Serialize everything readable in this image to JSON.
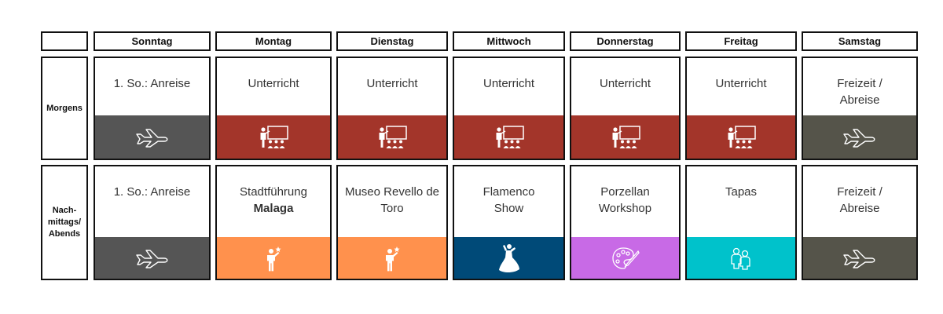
{
  "days": [
    "Sonntag",
    "Montag",
    "Dienstag",
    "Mittwoch",
    "Donnerstag",
    "Freitag",
    "Samstag"
  ],
  "rows": [
    {
      "label": "Morgens",
      "cells": [
        {
          "line1": "1. So.: Anreise",
          "line2": "",
          "icon": "airplane-icon",
          "color": "#555555"
        },
        {
          "line1": "Unterricht",
          "line2": "",
          "icon": "teacher-class-icon",
          "color": "#A3352A"
        },
        {
          "line1": "Unterricht",
          "line2": "",
          "icon": "teacher-class-icon",
          "color": "#A3352A"
        },
        {
          "line1": "Unterricht",
          "line2": "",
          "icon": "teacher-class-icon",
          "color": "#A3352A"
        },
        {
          "line1": "Unterricht",
          "line2": "",
          "icon": "teacher-class-icon",
          "color": "#A3352A"
        },
        {
          "line1": "Unterricht",
          "line2": "",
          "icon": "teacher-class-icon",
          "color": "#A3352A"
        },
        {
          "line1": "Freizeit /",
          "line2": "Abreise",
          "icon": "airplane-icon",
          "color": "#55544A"
        }
      ]
    },
    {
      "label_lines": [
        "Nach-",
        "mittags/",
        "Abends"
      ],
      "cells": [
        {
          "line1": "1. So.: Anreise",
          "line2": "",
          "icon": "airplane-icon",
          "color": "#555555"
        },
        {
          "line1": "Stadtführung",
          "line2": "Malaga",
          "icon": "tour-guide-icon",
          "color": "#FF914D"
        },
        {
          "line1": "Museo Revello de",
          "line2": "Toro",
          "icon": "tour-guide-icon",
          "color": "#FF914D"
        },
        {
          "line1": "Flamenco",
          "line2": "Show",
          "icon": "flamenco-dancer-icon",
          "color": "#004A78"
        },
        {
          "line1": "Porzellan",
          "line2": "Workshop",
          "icon": "paint-palette-icon",
          "color": "#C86AE6"
        },
        {
          "line1": "Tapas",
          "line2": "",
          "icon": "people-group-icon",
          "color": "#00C2CB"
        },
        {
          "line1": "Freizeit /",
          "line2": "Abreise",
          "icon": "airplane-icon",
          "color": "#55544A"
        }
      ]
    }
  ]
}
